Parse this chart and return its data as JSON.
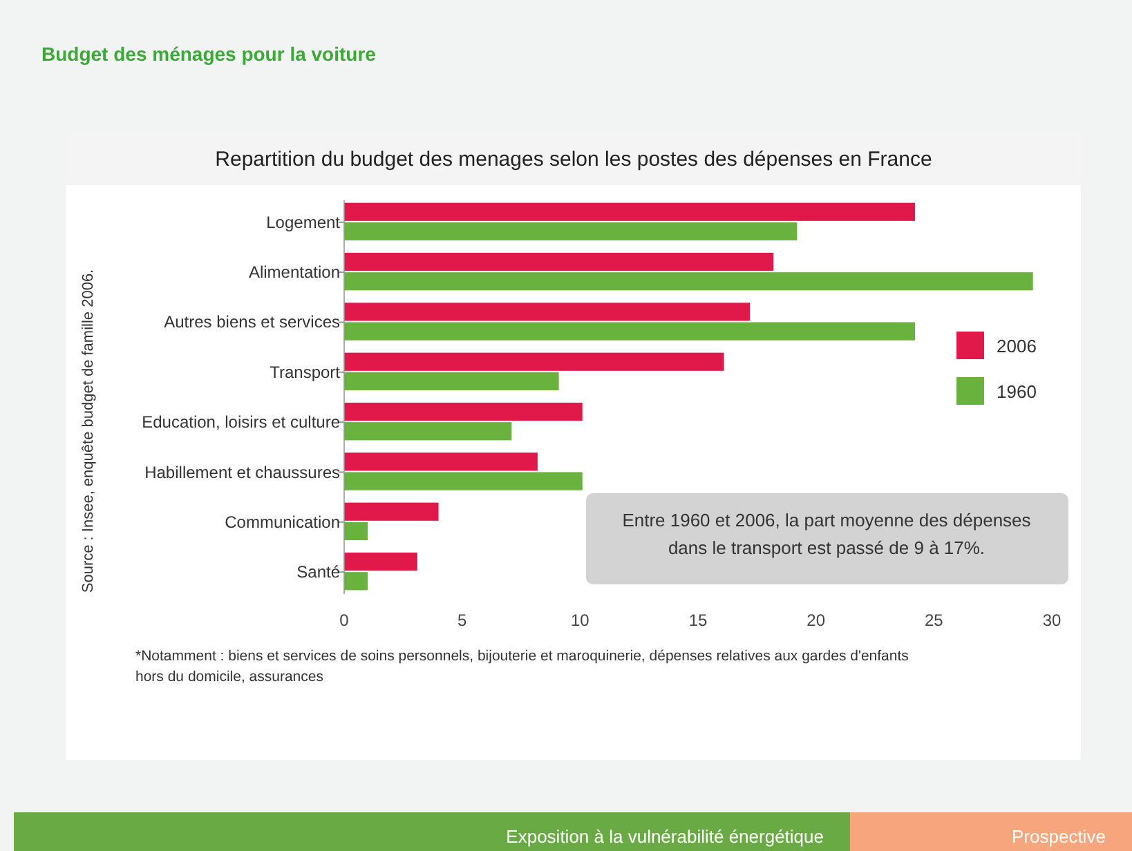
{
  "chart_data": {
    "type": "bar",
    "orientation": "horizontal",
    "title": "Budget des ménages pour la voiture",
    "subtitle": "Repartition du budget des menages selon les postes des dépenses en France",
    "categories": [
      "Logement",
      "Alimentation",
      "Autres biens et services",
      "Transport",
      "Education, loisirs et culture",
      "Habillement et chaussures",
      "Communication",
      "Santé"
    ],
    "series": [
      {
        "name": "2006",
        "color": "#e0194a",
        "values": [
          24.2,
          18.2,
          17.2,
          16.1,
          10.1,
          8.2,
          4.0,
          3.1
        ]
      },
      {
        "name": "1960",
        "color": "#6ab23e",
        "values": [
          19.2,
          29.2,
          24.2,
          9.1,
          7.1,
          10.1,
          1.0,
          1.0
        ]
      }
    ],
    "xlim": [
      0,
      30
    ],
    "xticks": [
      0,
      5,
      10,
      15,
      20,
      25,
      30
    ],
    "grid": false,
    "legend": "right",
    "annotations": [
      "Source : Insee, enquête budget de famille 2006.",
      "Entre 1960 et 2006, la part moyenne des dépenses dans le transport est passé de 9 à 17%.",
      "*Notamment : biens et services de soins personnels, bijouterie et maroquinerie, dépenses relatives aux gardes d'enfants hors du domicile, assurances",
      "Exposition à la vulnérabilité énergétique",
      "Prospective"
    ]
  }
}
